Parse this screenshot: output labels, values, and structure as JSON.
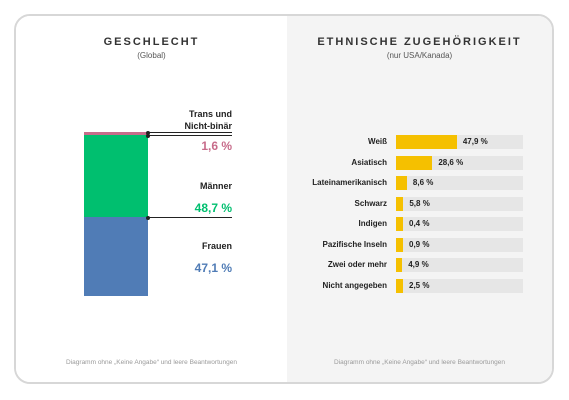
{
  "gender": {
    "title": "GESCHLECHT",
    "subtitle": "(Global)",
    "footnote": "Diagramm ohne „Keine Angabe“ und leere Beantwortungen"
  },
  "ethnicity": {
    "title": "ETHNISCHE ZUGEHÖRIGKEIT",
    "subtitle": "(nur USA/Kanada)",
    "footnote": "Diagramm ohne „Keine Angabe“ und leere Beantwortungen"
  },
  "colors": {
    "trans": "#c76b8a",
    "men": "#00bf6f",
    "women": "#507cb6",
    "ethnic_bar": "#f5c000",
    "track": "#e6e6e6"
  },
  "chart_data": [
    {
      "type": "bar",
      "stacked": true,
      "title": "GESCHLECHT",
      "subtitle": "(Global)",
      "segments": [
        {
          "name": "Trans und Nicht-binär",
          "value": 1.6,
          "label": "1,6 %",
          "color": "#c76b8a"
        },
        {
          "name": "Männer",
          "value": 48.7,
          "label": "48,7 %",
          "color": "#00bf6f"
        },
        {
          "name": "Frauen",
          "value": 47.1,
          "label": "47,1 %",
          "color": "#507cb6"
        }
      ]
    },
    {
      "type": "bar",
      "orientation": "horizontal",
      "title": "ETHNISCHE ZUGEHÖRIGKEIT",
      "subtitle": "(nur USA/Kanada)",
      "categories": [
        "Weiß",
        "Asiatisch",
        "Lateinamerikanisch",
        "Schwarz",
        "Indigen",
        "Pazifische Inseln",
        "Zwei oder mehr",
        "Nicht angegeben"
      ],
      "values": [
        47.9,
        28.6,
        8.6,
        5.8,
        0.4,
        0.9,
        4.9,
        2.5
      ],
      "value_labels": [
        "47,9 %",
        "28,6 %",
        "8,6 %",
        "5,8  %",
        "0,4 %",
        "0,9 %",
        "4,9 %",
        "2,5 %"
      ],
      "xlim": [
        0,
        100
      ]
    }
  ]
}
